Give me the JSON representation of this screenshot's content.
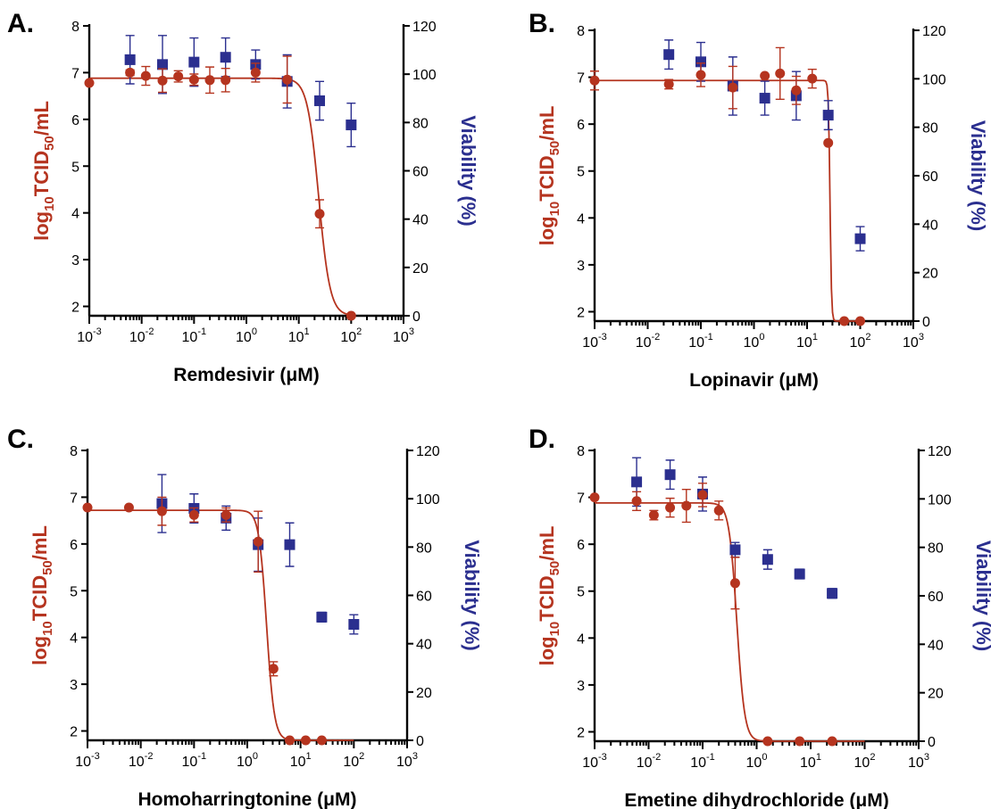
{
  "colors": {
    "titer": "#b5341f",
    "viability": "#2b2f8f",
    "axis": "#000000"
  },
  "chart_data": [
    {
      "type": "scatter",
      "panel": "A.",
      "xlabel": "Remdesivir (μM)",
      "ylabel_left_parts": [
        "log",
        "10",
        "TCID",
        "50",
        "/mL"
      ],
      "ylabel_right": "Viability (%)",
      "x_scale": "log",
      "xlim": [
        0.001,
        1000
      ],
      "x_ticks": [
        {
          "base": "10",
          "exp": "-3"
        },
        {
          "base": "10",
          "exp": "-2"
        },
        {
          "base": "10",
          "exp": "-1"
        },
        {
          "base": "10",
          "exp": "0"
        },
        {
          "base": "10",
          "exp": "1"
        },
        {
          "base": "10",
          "exp": "2"
        },
        {
          "base": "10",
          "exp": "3"
        }
      ],
      "y_left_lim": [
        1.8,
        8
      ],
      "y_left_ticks": [
        "2",
        "3",
        "4",
        "5",
        "6",
        "7",
        "8"
      ],
      "y_right_lim": [
        0,
        120
      ],
      "y_right_ticks": [
        "0",
        "20",
        "40",
        "60",
        "80",
        "100",
        "120"
      ],
      "grid": false,
      "fit": {
        "top": 6.88,
        "bottom": 1.8,
        "ic50": 24,
        "hill": 4
      },
      "titer": [
        {
          "x": 0.001,
          "y": 6.78,
          "err": 0
        },
        {
          "x": 0.006,
          "y": 7.0,
          "err": 0.06
        },
        {
          "x": 0.012,
          "y": 6.93,
          "err": 0.2
        },
        {
          "x": 0.025,
          "y": 6.83,
          "err": 0.25
        },
        {
          "x": 0.05,
          "y": 6.92,
          "err": 0.12
        },
        {
          "x": 0.1,
          "y": 6.85,
          "err": 0.12
        },
        {
          "x": 0.2,
          "y": 6.84,
          "err": 0.28
        },
        {
          "x": 0.4,
          "y": 6.84,
          "err": 0.25
        },
        {
          "x": 1.5,
          "y": 7.0,
          "err": 0.2
        },
        {
          "x": 6,
          "y": 6.85,
          "err": 0.5
        },
        {
          "x": 25,
          "y": 3.98,
          "err": 0.3
        },
        {
          "x": 100,
          "y": 1.8,
          "err": 0
        }
      ],
      "viability": [
        {
          "x": 0.006,
          "y": 106,
          "err": 10
        },
        {
          "x": 0.025,
          "y": 104,
          "err": 12
        },
        {
          "x": 0.1,
          "y": 105,
          "err": 10
        },
        {
          "x": 0.4,
          "y": 107,
          "err": 8
        },
        {
          "x": 1.5,
          "y": 104,
          "err": 6
        },
        {
          "x": 6,
          "y": 97,
          "err": 11
        },
        {
          "x": 25,
          "y": 89,
          "err": 8
        },
        {
          "x": 100,
          "y": 79,
          "err": 9
        }
      ]
    },
    {
      "type": "scatter",
      "panel": "B.",
      "xlabel": "Lopinavir (μM)",
      "ylabel_left_parts": [
        "log",
        "10",
        "TCID",
        "50",
        "/mL"
      ],
      "ylabel_right": "Viability (%)",
      "x_scale": "log",
      "xlim": [
        0.001,
        1000
      ],
      "x_ticks": [
        {
          "base": "10",
          "exp": "-3"
        },
        {
          "base": "10",
          "exp": "-2"
        },
        {
          "base": "10",
          "exp": "-1"
        },
        {
          "base": "10",
          "exp": "0"
        },
        {
          "base": "10",
          "exp": "1"
        },
        {
          "base": "10",
          "exp": "2"
        },
        {
          "base": "10",
          "exp": "3"
        }
      ],
      "y_left_lim": [
        1.8,
        8
      ],
      "y_left_ticks": [
        "2",
        "3",
        "4",
        "5",
        "6",
        "7",
        "8"
      ],
      "y_right_lim": [
        0,
        120
      ],
      "y_right_ticks": [
        "0",
        "20",
        "40",
        "60",
        "80",
        "100",
        "120"
      ],
      "grid": false,
      "fit": {
        "top": 6.93,
        "bottom": 1.8,
        "ic50": 27,
        "hill": 30
      },
      "titer": [
        {
          "x": 0.001,
          "y": 6.93,
          "err": 0.2
        },
        {
          "x": 0.025,
          "y": 6.85,
          "err": 0.1
        },
        {
          "x": 0.1,
          "y": 7.05,
          "err": 0.25
        },
        {
          "x": 0.4,
          "y": 6.78,
          "err": 0.45
        },
        {
          "x": 1.6,
          "y": 7.03,
          "err": 0
        },
        {
          "x": 3.1,
          "y": 7.08,
          "err": 0.55
        },
        {
          "x": 6.25,
          "y": 6.72,
          "err": 0.3
        },
        {
          "x": 12.5,
          "y": 6.97,
          "err": 0.2
        },
        {
          "x": 25,
          "y": 5.6,
          "err": 0
        },
        {
          "x": 50,
          "y": 1.8,
          "err": 0
        },
        {
          "x": 100,
          "y": 1.8,
          "err": 0
        }
      ],
      "viability": [
        {
          "x": 0.025,
          "y": 110,
          "err": 6
        },
        {
          "x": 0.1,
          "y": 107,
          "err": 8
        },
        {
          "x": 0.4,
          "y": 97,
          "err": 12
        },
        {
          "x": 1.6,
          "y": 92,
          "err": 7
        },
        {
          "x": 6.25,
          "y": 93,
          "err": 10
        },
        {
          "x": 25,
          "y": 85,
          "err": 6
        },
        {
          "x": 100,
          "y": 34,
          "err": 5
        }
      ]
    },
    {
      "type": "scatter",
      "panel": "C.",
      "xlabel": "Homoharringtonine (μM)",
      "ylabel_left_parts": [
        "log",
        "10",
        "TCID",
        "50",
        "/mL"
      ],
      "ylabel_right": "Viability (%)",
      "x_scale": "log",
      "xlim": [
        0.001,
        1000
      ],
      "x_ticks": [
        {
          "base": "10",
          "exp": "-3"
        },
        {
          "base": "10",
          "exp": "-2"
        },
        {
          "base": "10",
          "exp": "-1"
        },
        {
          "base": "10",
          "exp": "0"
        },
        {
          "base": "10",
          "exp": "1"
        },
        {
          "base": "10",
          "exp": "2"
        },
        {
          "base": "10",
          "exp": "3"
        }
      ],
      "y_left_lim": [
        1.8,
        8
      ],
      "y_left_ticks": [
        "2",
        "3",
        "4",
        "5",
        "6",
        "7",
        "8"
      ],
      "y_right_lim": [
        0,
        120
      ],
      "y_right_ticks": [
        "0",
        "20",
        "40",
        "60",
        "80",
        "100",
        "120"
      ],
      "grid": false,
      "fit": {
        "top": 6.72,
        "bottom": 1.8,
        "ic50": 2.3,
        "hill": 6
      },
      "titer": [
        {
          "x": 0.001,
          "y": 6.78,
          "err": 0
        },
        {
          "x": 0.006,
          "y": 6.78,
          "err": 0
        },
        {
          "x": 0.025,
          "y": 6.7,
          "err": 0.3
        },
        {
          "x": 0.1,
          "y": 6.62,
          "err": 0.15
        },
        {
          "x": 0.4,
          "y": 6.62,
          "err": 0.15
        },
        {
          "x": 1.6,
          "y": 6.05,
          "err": 0.65
        },
        {
          "x": 3.1,
          "y": 3.33,
          "err": 0.15
        },
        {
          "x": 6.25,
          "y": 1.8,
          "err": 0
        },
        {
          "x": 12.5,
          "y": 1.8,
          "err": 0
        },
        {
          "x": 25,
          "y": 1.8,
          "err": 0
        }
      ],
      "viability": [
        {
          "x": 0.025,
          "y": 98,
          "err": 12
        },
        {
          "x": 0.1,
          "y": 96,
          "err": 6
        },
        {
          "x": 0.4,
          "y": 92,
          "err": 5
        },
        {
          "x": 1.6,
          "y": 81,
          "err": 11
        },
        {
          "x": 6.25,
          "y": 81,
          "err": 9
        },
        {
          "x": 25,
          "y": 51,
          "err": 2
        },
        {
          "x": 100,
          "y": 48,
          "err": 4
        }
      ]
    },
    {
      "type": "scatter",
      "panel": "D.",
      "xlabel": "Emetine dihydrochloride (μM)",
      "ylabel_left_parts": [
        "log",
        "10",
        "TCID",
        "50",
        "/mL"
      ],
      "ylabel_right": "Viability (%)",
      "x_scale": "log",
      "xlim": [
        0.001,
        1000
      ],
      "x_ticks": [
        {
          "base": "10",
          "exp": "-3"
        },
        {
          "base": "10",
          "exp": "-2"
        },
        {
          "base": "10",
          "exp": "-1"
        },
        {
          "base": "10",
          "exp": "0"
        },
        {
          "base": "10",
          "exp": "1"
        },
        {
          "base": "10",
          "exp": "2"
        },
        {
          "base": "10",
          "exp": "3"
        }
      ],
      "y_left_lim": [
        1.8,
        8
      ],
      "y_left_ticks": [
        "2",
        "3",
        "4",
        "5",
        "6",
        "7",
        "8"
      ],
      "y_right_lim": [
        0,
        120
      ],
      "y_right_ticks": [
        "0",
        "20",
        "40",
        "60",
        "80",
        "100",
        "120"
      ],
      "grid": false,
      "fit": {
        "top": 6.88,
        "bottom": 1.8,
        "ic50": 0.43,
        "hill": 6
      },
      "titer": [
        {
          "x": 0.001,
          "y": 7.0,
          "err": 0
        },
        {
          "x": 0.006,
          "y": 6.92,
          "err": 0.2
        },
        {
          "x": 0.0125,
          "y": 6.62,
          "err": 0.1
        },
        {
          "x": 0.025,
          "y": 6.78,
          "err": 0.2
        },
        {
          "x": 0.05,
          "y": 6.82,
          "err": 0.35
        },
        {
          "x": 0.1,
          "y": 7.05,
          "err": 0.25
        },
        {
          "x": 0.2,
          "y": 6.72,
          "err": 0.2
        },
        {
          "x": 0.4,
          "y": 5.17,
          "err": 0.55
        },
        {
          "x": 1.6,
          "y": 1.8,
          "err": 0
        },
        {
          "x": 6.25,
          "y": 1.8,
          "err": 0
        },
        {
          "x": 25,
          "y": 1.8,
          "err": 0
        }
      ],
      "viability": [
        {
          "x": 0.006,
          "y": 107,
          "err": 10
        },
        {
          "x": 0.025,
          "y": 110,
          "err": 6
        },
        {
          "x": 0.1,
          "y": 102,
          "err": 7
        },
        {
          "x": 0.4,
          "y": 79,
          "err": 3
        },
        {
          "x": 1.6,
          "y": 75,
          "err": 4
        },
        {
          "x": 6.25,
          "y": 69,
          "err": 2
        },
        {
          "x": 25,
          "y": 61,
          "err": 2
        }
      ]
    }
  ]
}
